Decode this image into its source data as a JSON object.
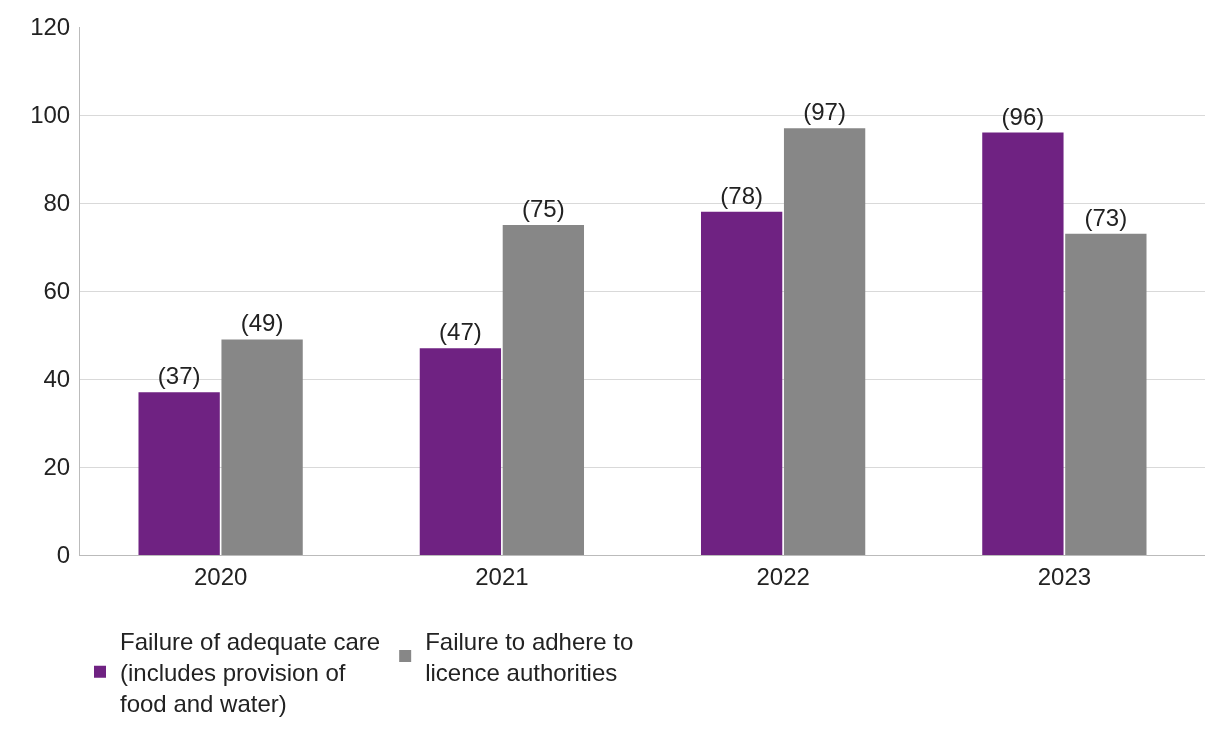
{
  "chart_data": {
    "type": "bar",
    "categories": [
      "2020",
      "2021",
      "2022",
      "2023"
    ],
    "series": [
      {
        "name": "Failure of adequate care (includes provision of food and water)",
        "color": "#6f2282",
        "values": [
          37,
          47,
          78,
          96
        ],
        "value_labels": [
          "(37)",
          "(47)",
          "(78)",
          "(96)"
        ]
      },
      {
        "name": "Failure to adhere to licence authorities",
        "color": "#878787",
        "values": [
          49,
          75,
          97,
          73
        ],
        "value_labels": [
          "(49)",
          "(75)",
          "(97)",
          "(73)"
        ]
      }
    ],
    "ylim": [
      0,
      120
    ],
    "yticks": [
      0,
      20,
      40,
      60,
      80,
      100,
      120
    ],
    "grid": "y",
    "legend": "bottom left"
  }
}
